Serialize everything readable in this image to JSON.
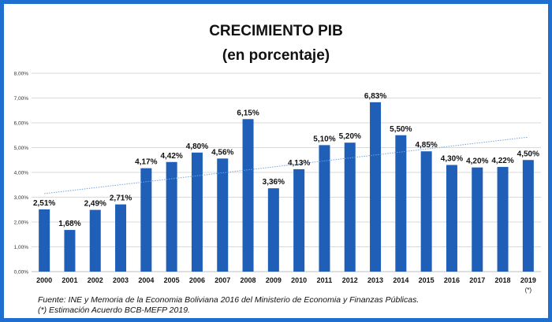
{
  "title": "CRECIMIENTO PIB",
  "subtitle": "(en porcentaje)",
  "colors": {
    "frame": "#1f6fd0",
    "bar": "#1f5fb8",
    "trend": "#6fa8e0",
    "grid": "#d9d9d9"
  },
  "chart_data": {
    "type": "bar",
    "title": "CRECIMIENTO PIB",
    "subtitle": "(en porcentaje)",
    "categories": [
      "2000",
      "2001",
      "2002",
      "2003",
      "2004",
      "2005",
      "2006",
      "2007",
      "2008",
      "2009",
      "2010",
      "2011",
      "2012",
      "2013",
      "2014",
      "2015",
      "2016",
      "2017",
      "2018",
      "2019"
    ],
    "category_note": {
      "index": 19,
      "text": "(*)"
    },
    "values": [
      2.51,
      1.68,
      2.49,
      2.71,
      4.17,
      4.42,
      4.8,
      4.56,
      6.15,
      3.36,
      4.13,
      5.1,
      5.2,
      6.83,
      5.5,
      4.85,
      4.3,
      4.2,
      4.22,
      4.5
    ],
    "value_labels": [
      "2,51%",
      "1,68%",
      "2,49%",
      "2,71%",
      "4,17%",
      "4,42%",
      "4,80%",
      "4,56%",
      "6,15%",
      "3,36%",
      "4,13%",
      "5,10%",
      "5,20%",
      "6,83%",
      "5,50%",
      "4,85%",
      "4,30%",
      "4,20%",
      "4,22%",
      "4,50%"
    ],
    "y_ticks": [
      0,
      1,
      2,
      3,
      4,
      5,
      6,
      7,
      8
    ],
    "y_tick_labels": [
      "0,00%",
      "1,00%",
      "2,00%",
      "3,00%",
      "4,00%",
      "5,00%",
      "6,00%",
      "7,00%",
      "8,00%"
    ],
    "ylim": [
      0,
      8
    ],
    "grid": true,
    "trendline": {
      "type": "linear",
      "style": "dotted"
    }
  },
  "footnotes": [
    "Fuente: INE  y Memoria de la Economia Boliviana 2016 del Ministerio de Economia y Finanzas Públicas.",
    "(*) Estimación Acuerdo BCB-MEFP 2019."
  ]
}
